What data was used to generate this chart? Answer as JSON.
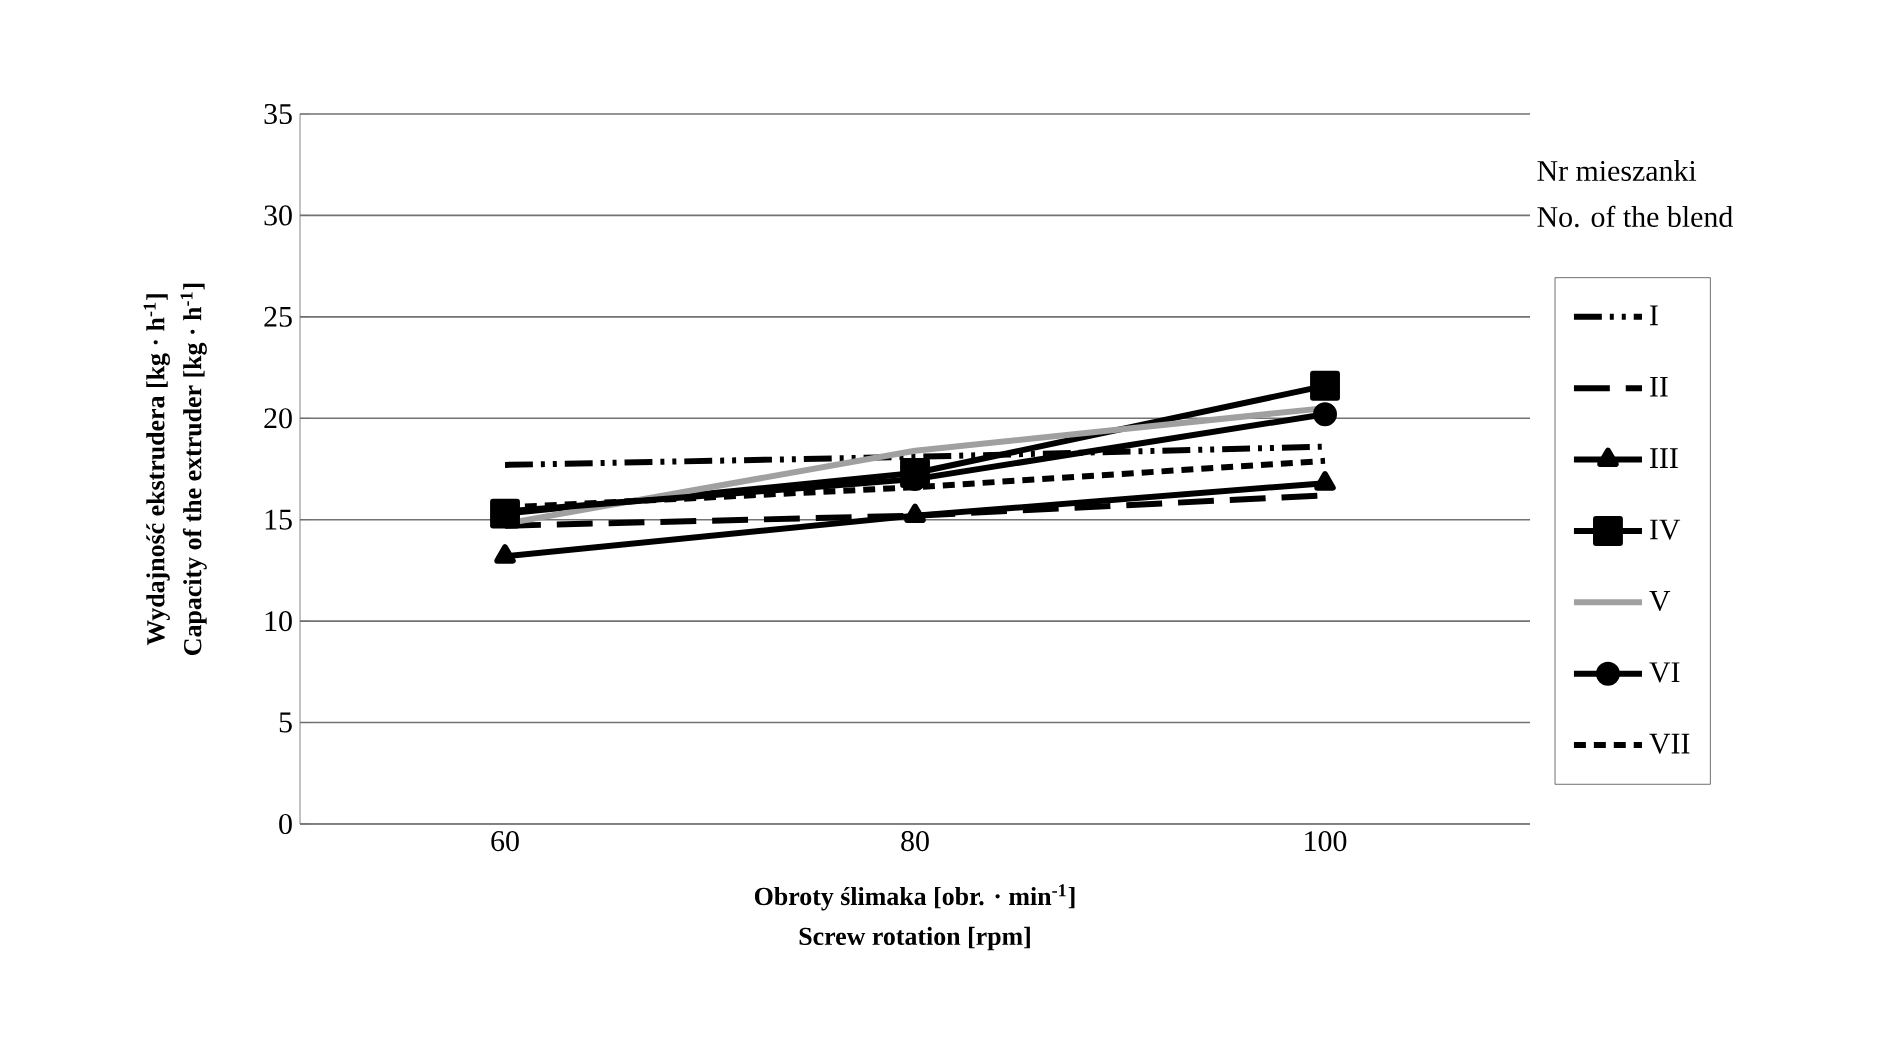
{
  "chart_data": {
    "type": "line",
    "xlabel": "Obroty ślimaka [obr. · min$^{-1}$]",
    "ylabel": "Wydajność ekstrudera [kg · h$^{-1}$]",
    "legend_title": "Nr mieszanki",
    "annotations": [
      "Screw rotation [rpm]",
      "Capacity of the extruder [kg · h$^{-1}$]",
      "No. of the blend"
    ],
    "categories": [
      "60",
      "80",
      "100"
    ],
    "ylim": [
      0,
      35
    ],
    "yticks": [
      0,
      5,
      10,
      15,
      20,
      25,
      30,
      35
    ],
    "grid": "y",
    "legend": "right",
    "series": [
      {
        "name": "I",
        "color": "#000000",
        "line_style": "dashdotdotted",
        "marker": "none",
        "values": [
          17.7,
          18.1,
          18.6
        ]
      },
      {
        "name": "II",
        "color": "#000000",
        "line_style": "longdashed",
        "marker": "none",
        "values": [
          14.7,
          15.2,
          16.2
        ]
      },
      {
        "name": "III",
        "color": "#000000",
        "line_style": "solid",
        "marker": "triangle",
        "values": [
          13.2,
          15.2,
          16.8
        ]
      },
      {
        "name": "IV",
        "color": "#000000",
        "line_style": "solid",
        "marker": "square",
        "values": [
          15.3,
          17.3,
          21.6
        ]
      },
      {
        "name": "V",
        "color": "#a0a0a0",
        "line_style": "solid",
        "marker": "none",
        "values": [
          14.8,
          18.4,
          20.5
        ]
      },
      {
        "name": "VI",
        "color": "#000000",
        "line_style": "solid",
        "marker": "circle",
        "values": [
          15.4,
          17.0,
          20.2
        ]
      },
      {
        "name": "VII",
        "color": "#000000",
        "line_style": "dashed",
        "marker": "none",
        "values": [
          15.6,
          16.6,
          17.9
        ]
      }
    ]
  }
}
